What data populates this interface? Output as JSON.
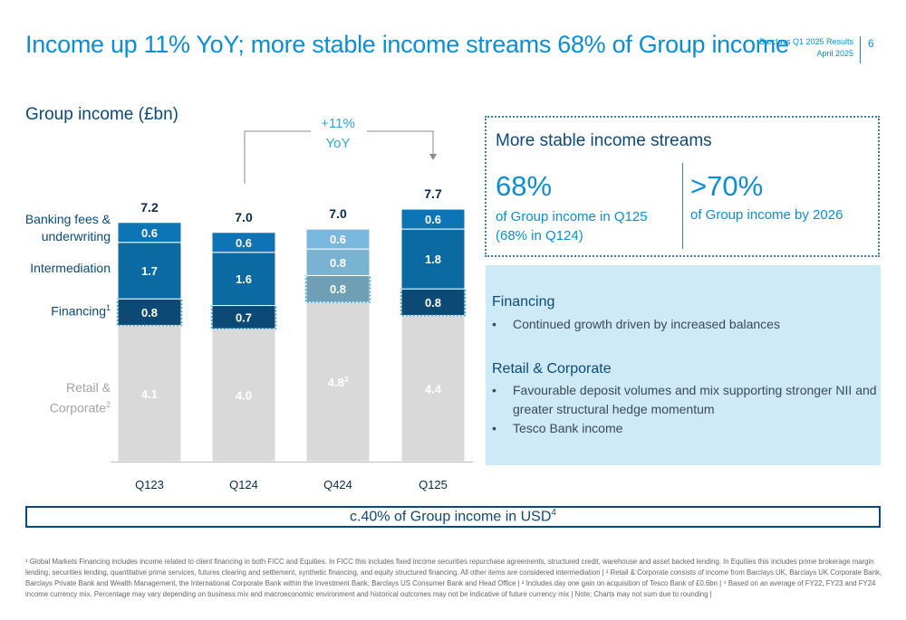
{
  "header": {
    "title": "Income up 11% YoY; more stable income streams 68% of Group income",
    "meta_line1": "Barclays Q1 2025 Results",
    "meta_line2": "April 2025",
    "page_number": "6"
  },
  "chart_data": {
    "type": "bar",
    "stacked": true,
    "title": "Group income (£bn)",
    "categories": [
      "Q123",
      "Q124",
      "Q424",
      "Q125"
    ],
    "totals": [
      "7.2",
      "7.0",
      "7.0",
      "7.7"
    ],
    "series": [
      {
        "name": "Retail & Corporate",
        "values": [
          4.1,
          4.0,
          4.8,
          4.4
        ],
        "labels": [
          "4.1",
          "4.0",
          "4.8",
          "4.4"
        ]
      },
      {
        "name": "Financing",
        "values": [
          0.8,
          0.7,
          0.8,
          0.8
        ],
        "labels": [
          "0.8",
          "0.7",
          "0.8",
          "0.8"
        ]
      },
      {
        "name": "Intermediation",
        "values": [
          1.7,
          1.6,
          0.8,
          1.8
        ],
        "labels": [
          "1.7",
          "1.6",
          "0.8",
          "1.8"
        ]
      },
      {
        "name": "Banking fees & underwriting",
        "values": [
          0.6,
          0.6,
          0.6,
          0.6
        ],
        "labels": [
          "0.6",
          "0.6",
          "0.6",
          "0.6"
        ]
      }
    ],
    "annotation": {
      "line1": "+11%",
      "line2": "YoY",
      "from": "Q124",
      "to": "Q125"
    },
    "retail_sup": {
      "Q424": "3"
    },
    "colors": {
      "retail": "#d9d9d9",
      "financing": "#0c4a75",
      "intermediation": "#0c6aa3",
      "fees": "#0d74b5",
      "q424_retail": "#d9d9d9",
      "q424_financing": "#6f9fb5",
      "q424_intermediation": "#7ab3d2",
      "q424_fees": "#7ab8e0"
    }
  },
  "legend_labels": {
    "fees_line1": "Banking fees &",
    "fees_line2": "underwriting",
    "intermediation": "Intermediation",
    "financing": "Financing",
    "financing_sup": "1",
    "retail_line1": "Retail &",
    "retail_line2": "Corporate",
    "retail_sup": "2"
  },
  "stable": {
    "title": "More stable income streams",
    "stat1_value": "68%",
    "stat1_line1": "of Group income in Q125",
    "stat1_line2": "(68% in Q124)",
    "stat2_value": ">70%",
    "stat2_desc": "of Group income by 2026"
  },
  "info": {
    "financing_heading": "Financing",
    "financing_bullet": "Continued growth driven by increased balances",
    "retail_heading": "Retail & Corporate",
    "retail_bullet1": "Favourable deposit volumes and mix supporting stronger NII and greater structural hedge momentum",
    "retail_bullet2": "Tesco Bank income",
    "bullet_char": "•"
  },
  "usd": {
    "text": "c.40% of Group income in USD",
    "sup": "4"
  },
  "footnote": "¹ Global Markets Financing includes income related to client financing in both FICC and Equities. In FICC this includes fixed income securities repurchase agreements, structured credit, warehouse and asset backed lending. In Equities this includes prime brokerage margin lending, securities lending, quantitative prime services, futures clearing and settlement, synthetic financing, and equity structured financing. All other items are considered intermediation | ² Retail & Corporate consists of income from Barclays UK, Barclays UK Corporate Bank, Barclays Private Bank and Wealth Management, the International Corporate Bank within the Investment Bank, Barclays US Consumer Bank and Head Office | ³ Includes day one gain on acquisition of Tesco Bank of £0.6bn | ⁴ Based on an average of FY22, FY23 and FY24 income currency mix. Percentage may vary depending on business mix and macroeconomic environment and historical outcomes may not be indicative of future currency mix | Note: Charts may not sum due to rounding |"
}
